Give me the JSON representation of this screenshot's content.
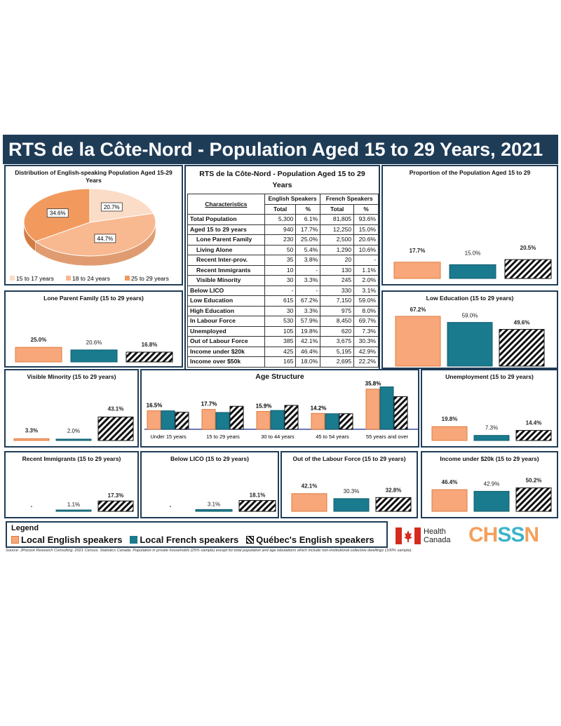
{
  "title": "RTS de la Côte-Nord - Population Aged 15 to 29 Years, 2021",
  "colors": {
    "local_english": "#f7a77a",
    "local_french": "#1a7a8e",
    "quebec_english": "hatched",
    "frame": "#1f3c57"
  },
  "pie": {
    "title": "Distribution of English-speaking Population Aged 15-29 Years",
    "chart_data": {
      "type": "pie",
      "labels": [
        "15 to 17 years",
        "18 to 24 years",
        "25 to 29 years"
      ],
      "values": [
        20.7,
        44.7,
        34.6
      ],
      "value_labels": [
        "20.7%",
        "44.7%",
        "34.6%"
      ],
      "colors": [
        "#fbdcc6",
        "#f9b990",
        "#f29a5e"
      ],
      "legend_placement": "bottom"
    }
  },
  "table": {
    "title": "RTS de la Côte-Nord - Population Aged 15 to 29 Years",
    "col_characteristics": "Characteristics",
    "col_english": "English Speakers",
    "col_french": "French Speakers",
    "col_total": "Total",
    "col_pct": "%",
    "rows": [
      {
        "label": "Total Population",
        "en_total": "5,300",
        "en_pct": "6.1%",
        "fr_total": "81,805",
        "fr_pct": "93.6%"
      },
      {
        "label": "Aged 15 to 29 years",
        "en_total": "940",
        "en_pct": "17.7%",
        "fr_total": "12,250",
        "fr_pct": "15.0%"
      },
      {
        "label": "Lone Parent Family",
        "en_total": "230",
        "en_pct": "25.0%",
        "fr_total": "2,500",
        "fr_pct": "20.6%"
      },
      {
        "label": "Living Alone",
        "en_total": "50",
        "en_pct": "5.4%",
        "fr_total": "1,290",
        "fr_pct": "10.6%"
      },
      {
        "label": "Recent Inter-prov.",
        "en_total": "35",
        "en_pct": "3.8%",
        "fr_total": "20",
        "fr_pct": "-"
      },
      {
        "label": "Recent Immigrants",
        "en_total": "10",
        "en_pct": "-",
        "fr_total": "130",
        "fr_pct": "1.1%"
      },
      {
        "label": "Visible Minority",
        "en_total": "30",
        "en_pct": "3.3%",
        "fr_total": "245",
        "fr_pct": "2.0%"
      },
      {
        "label": "Below LICO",
        "en_total": "-",
        "en_pct": "-",
        "fr_total": "330",
        "fr_pct": "3.1%"
      },
      {
        "label": "Low Education",
        "en_total": "615",
        "en_pct": "67.2%",
        "fr_total": "7,150",
        "fr_pct": "59.0%"
      },
      {
        "label": "High Education",
        "en_total": "30",
        "en_pct": "3.3%",
        "fr_total": "975",
        "fr_pct": "8.0%"
      },
      {
        "label": "In Labour Force",
        "en_total": "530",
        "en_pct": "57.9%",
        "fr_total": "8,450",
        "fr_pct": "69.7%"
      },
      {
        "label": "Unemployed",
        "en_total": "105",
        "en_pct": "19.8%",
        "fr_total": "620",
        "fr_pct": "7.3%"
      },
      {
        "label": "Out of Labour Force",
        "en_total": "385",
        "en_pct": "42.1%",
        "fr_total": "3,675",
        "fr_pct": "30.3%"
      },
      {
        "label": "Income under $20k",
        "en_total": "425",
        "en_pct": "46.4%",
        "fr_total": "5,195",
        "fr_pct": "42.9%"
      },
      {
        "label": "Income over $50k",
        "en_total": "165",
        "en_pct": "18.0%",
        "fr_total": "2,695",
        "fr_pct": "22.2%"
      }
    ]
  },
  "chart_data": [
    {
      "id": "proportion",
      "type": "bar",
      "title": "Proportion of the Population Aged 15 to 29",
      "values": [
        17.7,
        15.0,
        20.5
      ],
      "labels": [
        "17.7%",
        "15.0%",
        "20.5%"
      ]
    },
    {
      "id": "lowedu",
      "type": "bar",
      "title": "Low Education (15 to 29 years)",
      "values": [
        67.2,
        59.0,
        49.6
      ],
      "labels": [
        "67.2%",
        "59.0%",
        "49.6%"
      ]
    },
    {
      "id": "loneparent",
      "type": "bar",
      "title": "Lone Parent Family (15 to 29 years)",
      "values": [
        25.0,
        20.6,
        16.8
      ],
      "labels": [
        "25.0%",
        "20.6%",
        "16.8%"
      ]
    },
    {
      "id": "visminority",
      "type": "bar",
      "title": "Visible Minority (15 to 29 years)",
      "values": [
        3.3,
        2.0,
        43.1
      ],
      "labels": [
        "3.3%",
        "2.0%",
        "43.1%"
      ]
    },
    {
      "id": "unemployment",
      "type": "bar",
      "title": "Unemployment (15 to 29 years)",
      "values": [
        19.8,
        7.3,
        14.4
      ],
      "labels": [
        "19.8%",
        "7.3%",
        "14.4%"
      ]
    },
    {
      "id": "recentimm",
      "type": "bar",
      "title": "Recent Immigrants (15 to 29 years)",
      "values": [
        0,
        1.1,
        17.3
      ],
      "labels": [
        "-",
        "1.1%",
        "17.3%"
      ]
    },
    {
      "id": "belowlico",
      "type": "bar",
      "title": "Below LICO (15 to 29 years)",
      "values": [
        0,
        3.1,
        18.1
      ],
      "labels": [
        "-",
        "3.1%",
        "18.1%"
      ]
    },
    {
      "id": "outlabour",
      "type": "bar",
      "title": "Out of the Labour Force (15 to 29 years)",
      "values": [
        42.1,
        30.3,
        32.8
      ],
      "labels": [
        "42.1%",
        "30.3%",
        "32.8%"
      ]
    },
    {
      "id": "income",
      "type": "bar",
      "title": "Income under $20k (15 to 29 years)",
      "values": [
        46.4,
        42.9,
        50.2
      ],
      "labels": [
        "46.4%",
        "42.9%",
        "50.2%"
      ]
    },
    {
      "id": "age",
      "type": "bar",
      "title": "Age Structure",
      "categories": [
        "Under 15 years",
        "15 to 29 years",
        "30 to 44 years",
        "45 to 54 years",
        "55 years and over"
      ],
      "series": [
        {
          "name": "Local English speakers",
          "values": [
            16.5,
            17.7,
            15.9,
            14.2,
            35.8
          ]
        },
        {
          "name": "Local French speakers",
          "values": [
            16.5,
            15.0,
            16.8,
            13.9,
            37.8
          ]
        },
        {
          "name": "Québec's English speakers",
          "values": [
            15.2,
            20.5,
            21.3,
            13.9,
            29.1
          ]
        }
      ],
      "labels": [
        "16.5%",
        "17.7%",
        "15.9%",
        "14.2%",
        "35.8%"
      ]
    }
  ],
  "legend": {
    "title": "Legend",
    "items": [
      "Local English speakers",
      "Local French speakers",
      "Québec's English speakers"
    ]
  },
  "logos": {
    "health_canada": "Health Canada",
    "health": "Health",
    "canada": "Canada",
    "chssn": "CHSSN"
  },
  "source": "Source: JPocock Research Consulting. 2021 Census. Statistics Canada. Population in private households (25% sample) except for total population and age tabulations which include non-institutional collective dwellings (100% sample)."
}
